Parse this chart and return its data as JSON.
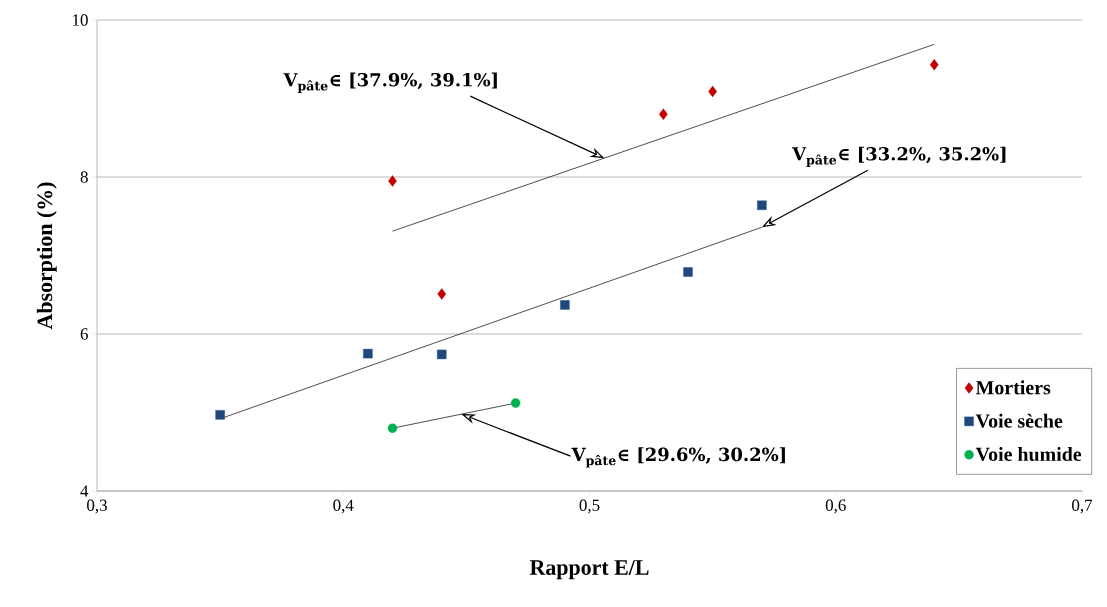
{
  "chart_data": {
    "type": "scatter",
    "xlabel": "Rapport E/L",
    "ylabel": "Absorption (%)",
    "xlim": [
      0.3,
      0.7
    ],
    "ylim": [
      4,
      10
    ],
    "xticks": [
      {
        "value": 0.3,
        "label": "0,3"
      },
      {
        "value": 0.4,
        "label": "0,4"
      },
      {
        "value": 0.5,
        "label": "0,5"
      },
      {
        "value": 0.6,
        "label": "0,6"
      },
      {
        "value": 0.7,
        "label": "0,7"
      }
    ],
    "yticks": [
      4,
      6,
      8,
      10
    ],
    "grid": "y",
    "legend": "bottom right",
    "series": [
      {
        "name": "Mortiers",
        "color": "#c00000",
        "marker": "diamond",
        "x": [
          0.42,
          0.44,
          0.53,
          0.55,
          0.64
        ],
        "values": [
          7.95,
          6.51,
          8.8,
          9.09,
          9.43
        ]
      },
      {
        "name": "Voie sèche",
        "color": "#1f497d",
        "marker": "square",
        "x": [
          0.35,
          0.41,
          0.44,
          0.49,
          0.54,
          0.57
        ],
        "values": [
          4.97,
          5.75,
          5.74,
          6.37,
          6.79,
          7.64
        ]
      },
      {
        "name": "Voie humide",
        "color": "#00b050",
        "marker": "circle",
        "x": [
          0.42,
          0.47
        ],
        "values": [
          4.8,
          5.12
        ]
      },
      {
        "type": "line",
        "color": "#000000",
        "marker": "none",
        "x": [
          0.42,
          0.64
        ],
        "values": [
          7.31,
          9.69
        ]
      },
      {
        "type": "line",
        "color": "#000000",
        "marker": "none",
        "x": [
          0.35,
          0.57
        ],
        "values": [
          4.92,
          7.36
        ]
      },
      {
        "type": "line",
        "color": "#000000",
        "marker": "none",
        "x": [
          0.42,
          0.47
        ],
        "values": [
          4.8,
          5.12
        ]
      }
    ],
    "annotations": [
      {
        "text": "V$_{pâte}$∈ [37.9%, 39.1%]",
        "x": 0.506,
        "y": 8.24
      },
      {
        "text": "V$_{pâte}$∈ [33.2%, 35.2%]",
        "x": 0.57,
        "y": 7.36
      },
      {
        "text": "V$_{pâte}$∈ [29.6%, 30.2%]",
        "x": 0.448,
        "y": 4.98
      }
    ]
  }
}
